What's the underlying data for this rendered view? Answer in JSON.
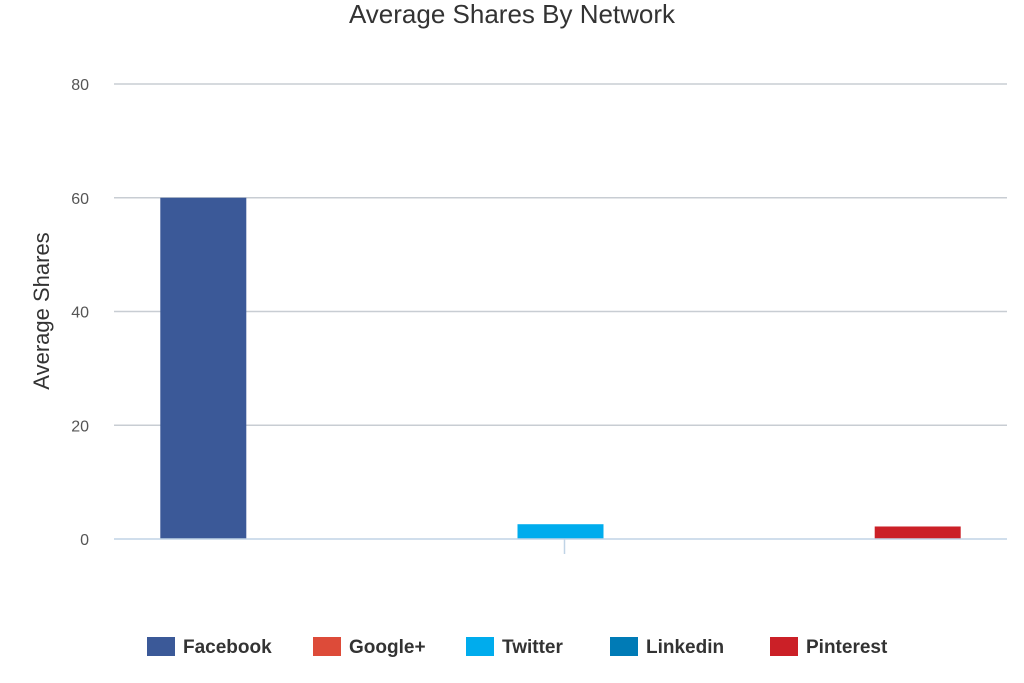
{
  "chart_data": {
    "type": "bar",
    "title": "Average Shares By Network",
    "xlabel": "",
    "ylabel": "Average Shares",
    "ylim": [
      0,
      80
    ],
    "yticks": [
      0,
      20,
      40,
      60,
      80
    ],
    "grid": true,
    "legend_position": "bottom",
    "categories": [
      "Facebook",
      "Google+",
      "Twitter",
      "Linkedin",
      "Pinterest"
    ],
    "values": [
      60,
      0,
      2.6,
      0,
      2.2
    ],
    "colors": [
      "#3b5998",
      "#dd4b39",
      "#00aced",
      "#007bb6",
      "#cb2027"
    ],
    "gridline_color": "#c8cdd3",
    "baseline_color": "#c0d4e6"
  }
}
